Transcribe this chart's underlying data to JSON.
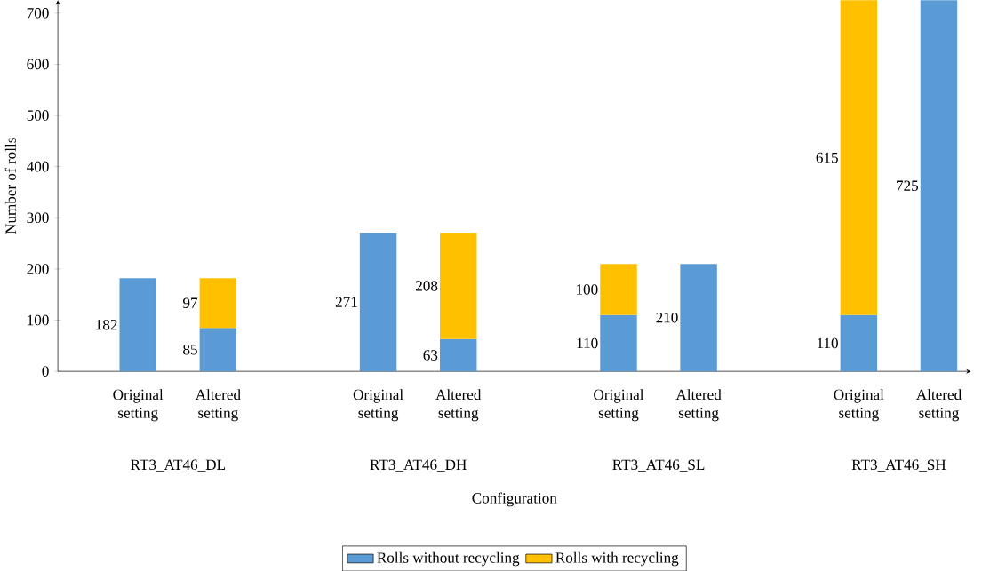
{
  "chart_data": {
    "type": "bar",
    "stacked": true,
    "xlabel": "Configuration",
    "ylabel": "Number of rolls",
    "categories": [
      "Original setting",
      "Altered setting",
      "Original setting",
      "Altered setting",
      "Original setting",
      "Altered setting",
      "Original setting",
      "Altered setting"
    ],
    "series": [
      {
        "name": "Rolls without recycling",
        "color": "#5b9bd5",
        "values": [
          182,
          85,
          271,
          63,
          110,
          210,
          110,
          725
        ]
      },
      {
        "name": "Rolls with recycling",
        "color": "#ffc000",
        "values": [
          null,
          97,
          null,
          208,
          100,
          null,
          615,
          null
        ]
      }
    ],
    "annotations": [
      "RT3_AT46_DL",
      "RT3_AT46_DH",
      "RT3_AT46_SL",
      "RT3_AT46_SH"
    ],
    "ylim": [
      0,
      725
    ],
    "yticks": [
      0,
      100,
      200,
      300,
      400,
      500,
      600,
      700
    ],
    "data_labels": true,
    "legend": "bottom",
    "grid": false
  }
}
